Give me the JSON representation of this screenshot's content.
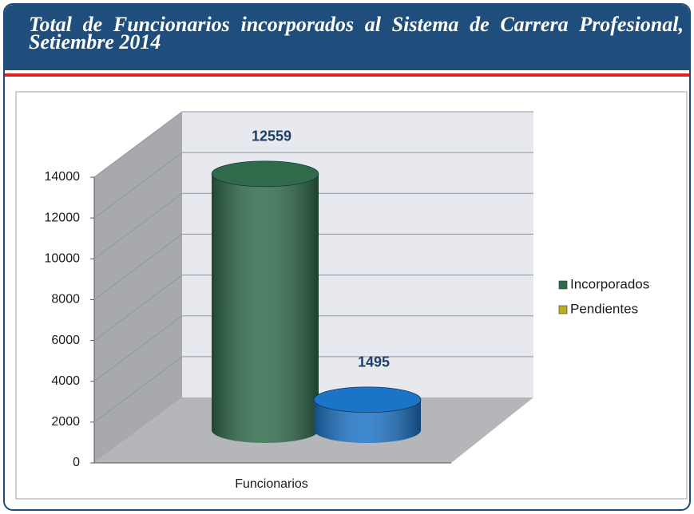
{
  "chart_data": {
    "type": "bar3d",
    "title": "Total de Funcionarios incorporados al Sistema de Carrera Profesional, Setiembre 2014",
    "categories": [
      "Funcionarios"
    ],
    "series": [
      {
        "name": "Incorporados",
        "color": "#2f6b4a",
        "legend_color": "#2f6b4a",
        "values": [
          12559
        ]
      },
      {
        "name": "Pendientes",
        "color": "#1c74c8",
        "legend_color": "#b8b020",
        "values": [
          1495
        ]
      }
    ],
    "ylim": [
      0,
      14000
    ],
    "yticks": [
      0,
      2000,
      4000,
      6000,
      8000,
      10000,
      12000,
      14000
    ],
    "grid": true,
    "legend": "right"
  }
}
